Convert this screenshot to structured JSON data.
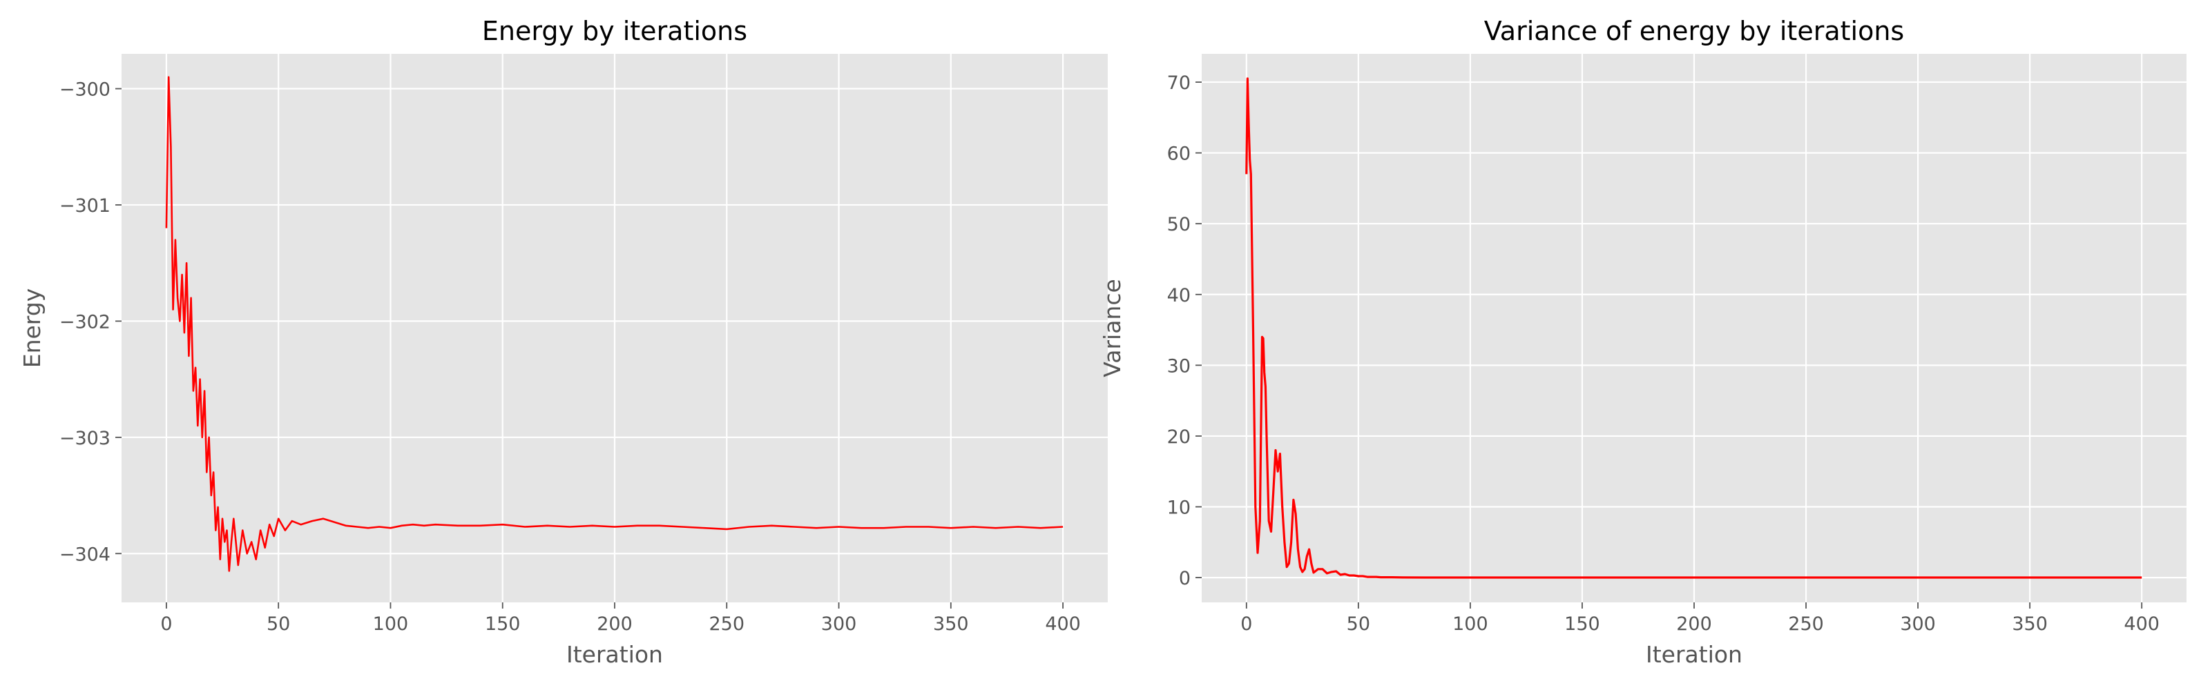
{
  "chart_data": [
    {
      "type": "line",
      "title": "Energy by iterations",
      "xlabel": "Iteration",
      "ylabel": "Energy",
      "xlim": [
        -20,
        420
      ],
      "ylim": [
        -304.42,
        -299.7
      ],
      "xticks": [
        0,
        50,
        100,
        150,
        200,
        250,
        300,
        350,
        400
      ],
      "yticks": [
        -304,
        -303,
        -302,
        -301,
        -300
      ],
      "ytick_labels": [
        "−304",
        "−303",
        "−302",
        "−301",
        "−300"
      ],
      "grid": true,
      "series": [
        {
          "color": "#ff0000",
          "x": [
            0,
            1,
            2,
            3,
            4,
            5,
            6,
            7,
            8,
            9,
            10,
            11,
            12,
            13,
            14,
            15,
            16,
            17,
            18,
            19,
            20,
            21,
            22,
            23,
            24,
            25,
            26,
            27,
            28,
            29,
            30,
            32,
            34,
            36,
            38,
            40,
            42,
            44,
            46,
            48,
            50,
            53,
            56,
            60,
            65,
            70,
            75,
            80,
            85,
            90,
            95,
            100,
            105,
            110,
            115,
            120,
            130,
            140,
            150,
            160,
            170,
            180,
            190,
            200,
            210,
            220,
            230,
            240,
            250,
            260,
            270,
            280,
            290,
            300,
            310,
            320,
            330,
            340,
            350,
            360,
            370,
            380,
            390,
            400
          ],
          "y": [
            -301.2,
            -299.9,
            -300.5,
            -301.9,
            -301.3,
            -301.8,
            -302.0,
            -301.6,
            -302.1,
            -301.5,
            -302.3,
            -301.8,
            -302.6,
            -302.4,
            -302.9,
            -302.5,
            -303.0,
            -302.6,
            -303.3,
            -303.0,
            -303.5,
            -303.3,
            -303.8,
            -303.6,
            -304.05,
            -303.7,
            -303.9,
            -303.8,
            -304.15,
            -303.9,
            -303.7,
            -304.1,
            -303.8,
            -304.0,
            -303.9,
            -304.05,
            -303.8,
            -303.95,
            -303.75,
            -303.85,
            -303.7,
            -303.8,
            -303.72,
            -303.75,
            -303.72,
            -303.7,
            -303.73,
            -303.76,
            -303.77,
            -303.78,
            -303.77,
            -303.78,
            -303.76,
            -303.75,
            -303.76,
            -303.75,
            -303.76,
            -303.76,
            -303.75,
            -303.77,
            -303.76,
            -303.77,
            -303.76,
            -303.77,
            -303.76,
            -303.76,
            -303.77,
            -303.78,
            -303.79,
            -303.77,
            -303.76,
            -303.77,
            -303.78,
            -303.77,
            -303.78,
            -303.78,
            -303.77,
            -303.77,
            -303.78,
            -303.77,
            -303.78,
            -303.77,
            -303.78,
            -303.77
          ]
        }
      ]
    },
    {
      "type": "line",
      "title": "Variance of energy by iterations",
      "xlabel": "Iteration",
      "ylabel": "Variance",
      "xlim": [
        -20,
        420
      ],
      "ylim": [
        -3.5,
        74
      ],
      "xticks": [
        0,
        50,
        100,
        150,
        200,
        250,
        300,
        350,
        400
      ],
      "yticks": [
        0,
        10,
        20,
        30,
        40,
        50,
        60,
        70
      ],
      "ytick_labels": [
        "0",
        "10",
        "20",
        "30",
        "40",
        "50",
        "60",
        "70"
      ],
      "grid": true,
      "series": [
        {
          "color": "#ff0000",
          "x": [
            0,
            0.5,
            1,
            1.5,
            2,
            3,
            4,
            5,
            6,
            7,
            7.5,
            8,
            8.5,
            9,
            10,
            11,
            12,
            13,
            14,
            15,
            16,
            17,
            18,
            19,
            20,
            21,
            22,
            23,
            24,
            25,
            26,
            27,
            28,
            29,
            30,
            32,
            34,
            36,
            38,
            40,
            42,
            44,
            46,
            48,
            50,
            52,
            54,
            56,
            58,
            60,
            65,
            70,
            80,
            100,
            150,
            200,
            250,
            300,
            350,
            400
          ],
          "y": [
            57,
            70.5,
            64,
            59,
            57,
            35,
            10,
            3.5,
            8,
            34,
            33.8,
            29,
            27,
            20,
            8,
            6.5,
            12,
            18,
            15,
            17.5,
            10,
            5,
            1.5,
            2,
            5,
            11,
            9,
            4,
            1.5,
            0.8,
            1.2,
            3,
            4,
            2,
            0.7,
            1.2,
            1.2,
            0.6,
            0.8,
            0.9,
            0.4,
            0.5,
            0.3,
            0.3,
            0.2,
            0.2,
            0.1,
            0.1,
            0.1,
            0.05,
            0.05,
            0.02,
            0.01,
            0.01,
            0.01,
            0.01,
            0.01,
            0.01,
            0.01,
            0.01
          ]
        }
      ]
    }
  ]
}
